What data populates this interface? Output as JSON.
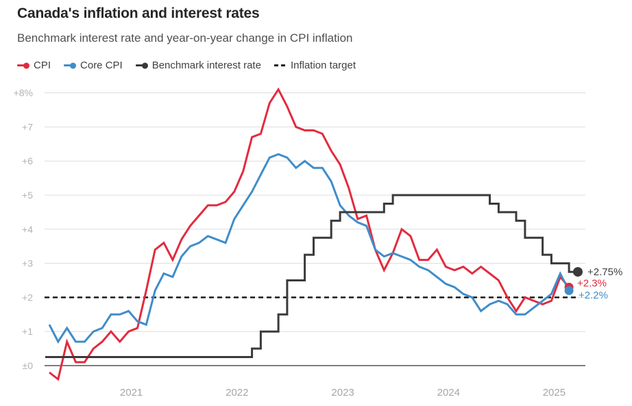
{
  "header": {
    "title": "Canada's inflation and interest rates",
    "subtitle": "Benchmark interest rate and year-on-year change in CPI inflation"
  },
  "colors": {
    "cpi": "#e22b3e",
    "core_cpi": "#3f8dca",
    "benchmark": "#3a3a3a",
    "target": "#1a1a1a",
    "grid": "#dcdcdc",
    "zero_line": "#7d7d7d",
    "y_tick_text": "#b3b3b3",
    "x_tick_text": "#a6a6a6",
    "end_label_dark": "#404040"
  },
  "legend": [
    {
      "label": "CPI",
      "swatch": "line-dot",
      "color": "#e22b3e"
    },
    {
      "label": "Core CPI",
      "swatch": "line-dot",
      "color": "#3f8dca"
    },
    {
      "label": "Benchmark interest rate",
      "swatch": "line-dot",
      "color": "#3a3a3a"
    },
    {
      "label": "Inflation target",
      "swatch": "dashes",
      "color": "#1a1a1a"
    }
  ],
  "chart_data": {
    "type": "line",
    "title": "Canada's inflation and interest rates",
    "subtitle": "Benchmark interest rate and year-on-year change in CPI inflation",
    "x_unit": "month",
    "x_range": [
      "2020-04",
      "2025-03"
    ],
    "x_tick_labels": [
      "2021",
      "2022",
      "2023",
      "2024",
      "2025"
    ],
    "y_tick_values": [
      8,
      7,
      6,
      5,
      4,
      3,
      2,
      1,
      0
    ],
    "y_tick_labels": [
      "+8%",
      "+7",
      "+6",
      "+5",
      "+4",
      "+3",
      "+2",
      "+1",
      "±0"
    ],
    "ylim": [
      0,
      8
    ],
    "grid": "horizontal",
    "legend_position": "top",
    "series": [
      {
        "name": "CPI",
        "type": "line",
        "color": "#e22b3e",
        "end_label": "+2.3%",
        "values": [
          -0.2,
          -0.4,
          0.7,
          0.1,
          0.1,
          0.5,
          0.7,
          1.0,
          0.7,
          1.0,
          1.1,
          2.2,
          3.4,
          3.6,
          3.1,
          3.7,
          4.1,
          4.4,
          4.7,
          4.7,
          4.8,
          5.1,
          5.7,
          6.7,
          6.8,
          7.7,
          8.1,
          7.6,
          7.0,
          6.9,
          6.9,
          6.8,
          6.3,
          5.9,
          5.2,
          4.3,
          4.4,
          3.4,
          2.8,
          3.3,
          4.0,
          3.8,
          3.1,
          3.1,
          3.4,
          2.9,
          2.8,
          2.9,
          2.7,
          2.9,
          2.7,
          2.5,
          2.0,
          1.6,
          2.0,
          1.9,
          1.8,
          1.9,
          2.6,
          2.3
        ]
      },
      {
        "name": "Core CPI",
        "type": "line",
        "color": "#3f8dca",
        "end_label": "+2.2%",
        "values": [
          1.2,
          0.7,
          1.1,
          0.7,
          0.7,
          1.0,
          1.1,
          1.5,
          1.5,
          1.6,
          1.3,
          1.2,
          2.2,
          2.7,
          2.6,
          3.2,
          3.5,
          3.6,
          3.8,
          3.7,
          3.6,
          4.3,
          4.7,
          5.1,
          5.6,
          6.1,
          6.2,
          6.1,
          5.8,
          6.0,
          5.8,
          5.8,
          5.4,
          4.7,
          4.4,
          4.2,
          4.1,
          3.4,
          3.2,
          3.3,
          3.2,
          3.1,
          2.9,
          2.8,
          2.6,
          2.4,
          2.3,
          2.1,
          2.0,
          1.6,
          1.8,
          1.9,
          1.8,
          1.5,
          1.5,
          1.7,
          1.9,
          2.1,
          2.7,
          2.2
        ]
      },
      {
        "name": "Benchmark interest rate",
        "type": "step",
        "color": "#3a3a3a",
        "end_label": "+2.75%",
        "changes": [
          [
            "2020-04",
            0.25
          ],
          [
            "2022-03",
            0.5
          ],
          [
            "2022-04",
            1.0
          ],
          [
            "2022-06",
            1.5
          ],
          [
            "2022-07",
            2.5
          ],
          [
            "2022-09",
            3.25
          ],
          [
            "2022-10",
            3.75
          ],
          [
            "2022-12",
            4.25
          ],
          [
            "2023-01",
            4.5
          ],
          [
            "2023-06",
            4.75
          ],
          [
            "2023-07",
            5.0
          ],
          [
            "2024-06",
            4.75
          ],
          [
            "2024-07",
            4.5
          ],
          [
            "2024-09",
            4.25
          ],
          [
            "2024-10",
            3.75
          ],
          [
            "2024-12",
            3.25
          ],
          [
            "2025-01",
            3.0
          ],
          [
            "2025-03",
            2.75
          ]
        ]
      },
      {
        "name": "Inflation target",
        "type": "reference-line",
        "color": "#1a1a1a",
        "style": "dashed",
        "value": 2
      }
    ]
  }
}
